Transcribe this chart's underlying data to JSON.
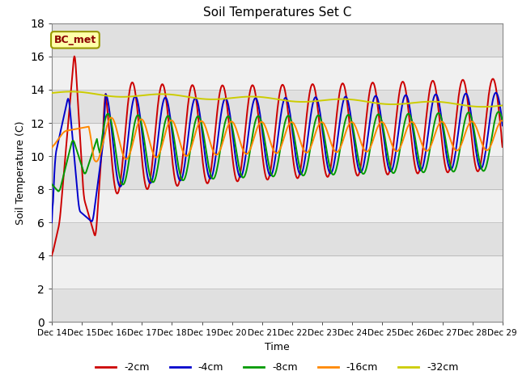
{
  "title": "Soil Temperatures Set C",
  "xlabel": "Time",
  "ylabel": "Soil Temperature (C)",
  "ylim": [
    0,
    18
  ],
  "yticks": [
    0,
    2,
    4,
    6,
    8,
    10,
    12,
    14,
    16,
    18
  ],
  "annotation_text": "BC_met",
  "series_colors": [
    "#cc0000",
    "#0000cc",
    "#009900",
    "#ff8800",
    "#cccc00"
  ],
  "legend_labels": [
    "-2cm",
    "-4cm",
    "-8cm",
    "-16cm",
    "-32cm"
  ],
  "xtick_labels": [
    "Dec 14",
    "Dec 15",
    "Dec 16",
    "Dec 17",
    "Dec 18",
    "Dec 19",
    "Dec 20",
    "Dec 21",
    "Dec 22",
    "Dec 23",
    "Dec 24",
    "Dec 25",
    "Dec 26",
    "Dec 27",
    "Dec 28",
    "Dec 29"
  ],
  "fig_bg": "#ffffff",
  "plot_bg": "#ffffff",
  "band_color_dark": "#e0e0e0",
  "band_color_light": "#f0f0f0",
  "n_points": 720
}
